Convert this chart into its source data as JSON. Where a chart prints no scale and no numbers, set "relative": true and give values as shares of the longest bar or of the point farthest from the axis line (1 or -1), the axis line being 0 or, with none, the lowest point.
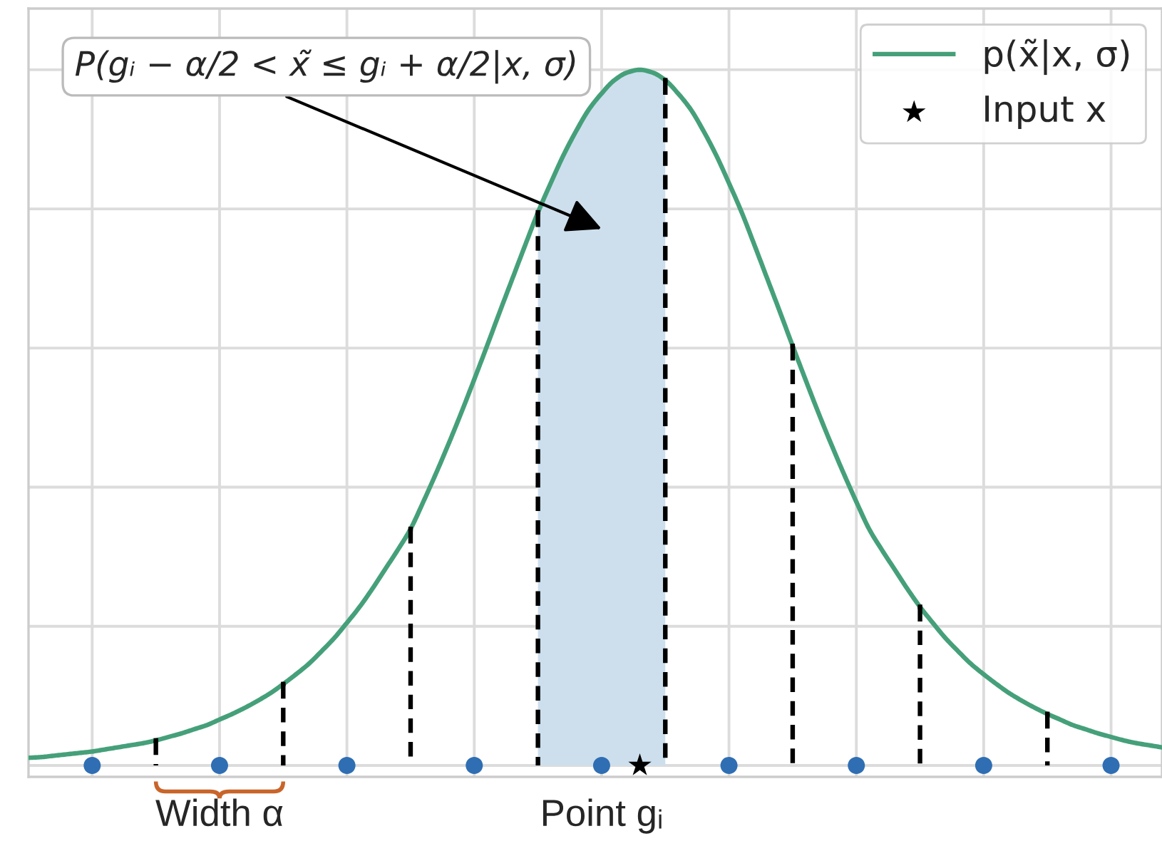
{
  "chart_data": {
    "type": "line",
    "relative": true,
    "tick_labels": "x",
    "grid": true,
    "legend": "top right",
    "categories": [
      null,
      null,
      null,
      null,
      null,
      null,
      null,
      null,
      null,
      null,
      null,
      null,
      null,
      null,
      null,
      "Width α",
      null,
      null,
      null,
      null,
      null,
      null,
      null,
      null,
      null,
      null,
      null,
      null,
      null,
      null,
      null,
      null,
      null,
      null,
      null,
      null,
      null,
      null,
      null,
      null,
      null,
      null,
      null,
      null,
      null,
      "Point gᵢ",
      null,
      null,
      null,
      null,
      null,
      null,
      null,
      null,
      null,
      null,
      null,
      null,
      null,
      null,
      null,
      null,
      null,
      null,
      null,
      null,
      null,
      null,
      null,
      null,
      null,
      null,
      null,
      null,
      null,
      null,
      null,
      null,
      null,
      null,
      null,
      null,
      null,
      null,
      null,
      null,
      null,
      null,
      null,
      null
    ],
    "series": [
      {
        "type": "area",
        "color": "#cddfed",
        "values": [
          null,
          null,
          null,
          null,
          null,
          null,
          null,
          null,
          null,
          null,
          null,
          null,
          null,
          null,
          null,
          null,
          null,
          null,
          null,
          null,
          null,
          null,
          null,
          null,
          null,
          null,
          null,
          null,
          null,
          null,
          null,
          null,
          null,
          null,
          null,
          null,
          null,
          null,
          null,
          null,
          0.795,
          0.837,
          0.877,
          0.912,
          0.943,
          0.966,
          0.985,
          0.996,
          1,
          0.996,
          0.985,
          null,
          null,
          null,
          null,
          null,
          null,
          null,
          null,
          null,
          null,
          null,
          null,
          null,
          null,
          null,
          null,
          null,
          null,
          null,
          null,
          null,
          null,
          null,
          null,
          null,
          null,
          null,
          null,
          null,
          null,
          null,
          null,
          null,
          null,
          null,
          null,
          null,
          null,
          null
        ]
      },
      {
        "name": "p(x̃|x, σ)",
        "color": "#45a07a",
        "values": [
          0.011,
          0.012,
          0.014,
          0.016,
          0.018,
          0.02,
          0.023,
          0.026,
          0.029,
          0.032,
          0.036,
          0.041,
          0.046,
          0.052,
          0.058,
          0.066,
          0.074,
          0.083,
          0.093,
          0.104,
          0.117,
          0.131,
          0.146,
          0.164,
          0.183,
          0.205,
          0.228,
          0.254,
          0.282,
          0.31,
          0.34,
          0.379,
          0.42,
          0.463,
          0.508,
          0.555,
          0.603,
          0.652,
          0.7,
          0.748,
          0.795,
          0.837,
          0.877,
          0.912,
          0.943,
          0.966,
          0.985,
          0.996,
          1,
          0.996,
          0.985,
          0.966,
          0.943,
          0.912,
          0.877,
          0.837,
          0.795,
          0.748,
          0.7,
          0.652,
          0.603,
          0.555,
          0.508,
          0.463,
          0.42,
          0.379,
          0.34,
          0.31,
          0.282,
          0.254,
          0.228,
          0.205,
          0.183,
          0.164,
          0.146,
          0.131,
          0.117,
          0.104,
          0.093,
          0.083,
          0.074,
          0.066,
          0.058,
          0.052,
          0.046,
          0.041,
          0.036,
          0.032,
          0.029,
          0.026
        ]
      },
      {
        "type": "lollipop",
        "color": "#000000",
        "marker": "square",
        "line_style": "dashed",
        "values": [
          null,
          null,
          null,
          null,
          null,
          null,
          null,
          null,
          null,
          null,
          0.036,
          null,
          null,
          null,
          null,
          null,
          null,
          null,
          null,
          null,
          0.117,
          null,
          null,
          null,
          null,
          null,
          null,
          null,
          null,
          null,
          0.34,
          null,
          null,
          null,
          null,
          null,
          null,
          null,
          null,
          null,
          0.795,
          null,
          null,
          null,
          null,
          null,
          null,
          null,
          null,
          null,
          0.985,
          null,
          null,
          null,
          null,
          null,
          null,
          null,
          null,
          null,
          0.603,
          null,
          null,
          null,
          null,
          null,
          null,
          null,
          null,
          null,
          0.228,
          null,
          null,
          null,
          null,
          null,
          null,
          null,
          null,
          null,
          0.074,
          null,
          null,
          null,
          null,
          null,
          null,
          null,
          null,
          null
        ]
      },
      {
        "type": "scatter",
        "color": "#2f6eb3",
        "marker": "circle",
        "values": [
          null,
          null,
          null,
          null,
          null,
          0,
          null,
          null,
          null,
          null,
          null,
          null,
          null,
          null,
          null,
          0,
          null,
          null,
          null,
          null,
          null,
          null,
          null,
          null,
          null,
          0,
          null,
          null,
          null,
          null,
          null,
          null,
          null,
          null,
          null,
          0,
          null,
          null,
          null,
          null,
          null,
          null,
          null,
          null,
          null,
          0,
          null,
          null,
          null,
          null,
          null,
          null,
          null,
          null,
          null,
          0,
          null,
          null,
          null,
          null,
          null,
          null,
          null,
          null,
          null,
          0,
          null,
          null,
          null,
          null,
          null,
          null,
          null,
          null,
          null,
          0,
          null,
          null,
          null,
          null,
          null,
          null,
          null,
          null,
          null,
          0,
          null,
          null,
          null,
          null
        ]
      },
      {
        "type": "scatter",
        "name": "Input x",
        "color": "#000000",
        "marker": "star",
        "values": [
          null,
          null,
          null,
          null,
          null,
          null,
          null,
          null,
          null,
          null,
          null,
          null,
          null,
          null,
          null,
          null,
          null,
          null,
          null,
          null,
          null,
          null,
          null,
          null,
          null,
          null,
          null,
          null,
          null,
          null,
          null,
          null,
          null,
          null,
          null,
          null,
          null,
          null,
          null,
          null,
          null,
          null,
          null,
          null,
          null,
          null,
          null,
          null,
          0,
          null,
          null,
          null,
          null,
          null,
          null,
          null,
          null,
          null,
          null,
          null,
          null,
          null,
          null,
          null,
          null,
          null,
          null,
          null,
          null,
          null,
          null,
          null,
          null,
          null,
          null,
          null,
          null,
          null,
          null,
          null,
          null,
          null,
          null,
          null,
          null,
          null,
          null,
          null,
          null,
          null
        ]
      }
    ],
    "annotations": [
      "P(gᵢ − α/2 < x̃ ≤ gᵢ + α/2|x, σ)"
    ]
  }
}
